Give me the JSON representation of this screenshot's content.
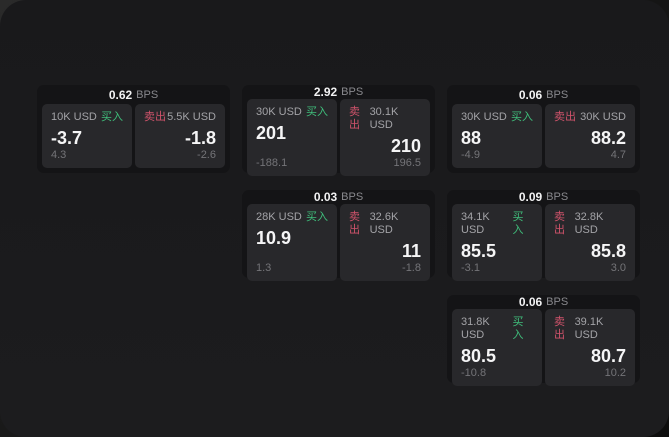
{
  "window": {
    "surface_color": "#1b1b1d",
    "card_color": "#141416",
    "panel_color": "#28282b"
  },
  "labels": {
    "bps": "BPS",
    "buy": "买入",
    "sell": "卖出"
  },
  "colors": {
    "buy_green": "#3fbe7b",
    "sell_red": "#d1536b"
  },
  "cards": [
    {
      "row": 1,
      "col": 1,
      "bps": "0.62",
      "buy": {
        "amount": "10K USD",
        "value": "-3.7",
        "delta": "4.3"
      },
      "sell": {
        "amount": "5.5K USD",
        "value": "-1.8",
        "delta": "-2.6"
      }
    },
    {
      "row": 1,
      "col": 2,
      "bps": "2.92",
      "buy": {
        "amount": "30K USD",
        "value": "201",
        "delta": "-188.1"
      },
      "sell": {
        "amount": "30.1K USD",
        "value": "210",
        "delta": "196.5"
      }
    },
    {
      "row": 1,
      "col": 3,
      "bps": "0.06",
      "buy": {
        "amount": "30K USD",
        "value": "88",
        "delta": "-4.9"
      },
      "sell": {
        "amount": "30K USD",
        "value": "88.2",
        "delta": "4.7"
      }
    },
    {
      "row": 2,
      "col": 2,
      "bps": "0.03",
      "buy": {
        "amount": "28K USD",
        "value": "10.9",
        "delta": "1.3"
      },
      "sell": {
        "amount": "32.6K USD",
        "value": "11",
        "delta": "-1.8"
      }
    },
    {
      "row": 2,
      "col": 3,
      "bps": "0.09",
      "buy": {
        "amount": "34.1K USD",
        "value": "85.5",
        "delta": "-3.1"
      },
      "sell": {
        "amount": "32.8K USD",
        "value": "85.8",
        "delta": "3.0"
      }
    },
    {
      "row": 3,
      "col": 3,
      "bps": "0.06",
      "buy": {
        "amount": "31.8K USD",
        "value": "80.5",
        "delta": "-10.8"
      },
      "sell": {
        "amount": "39.1K USD",
        "value": "80.7",
        "delta": "10.2"
      }
    }
  ]
}
